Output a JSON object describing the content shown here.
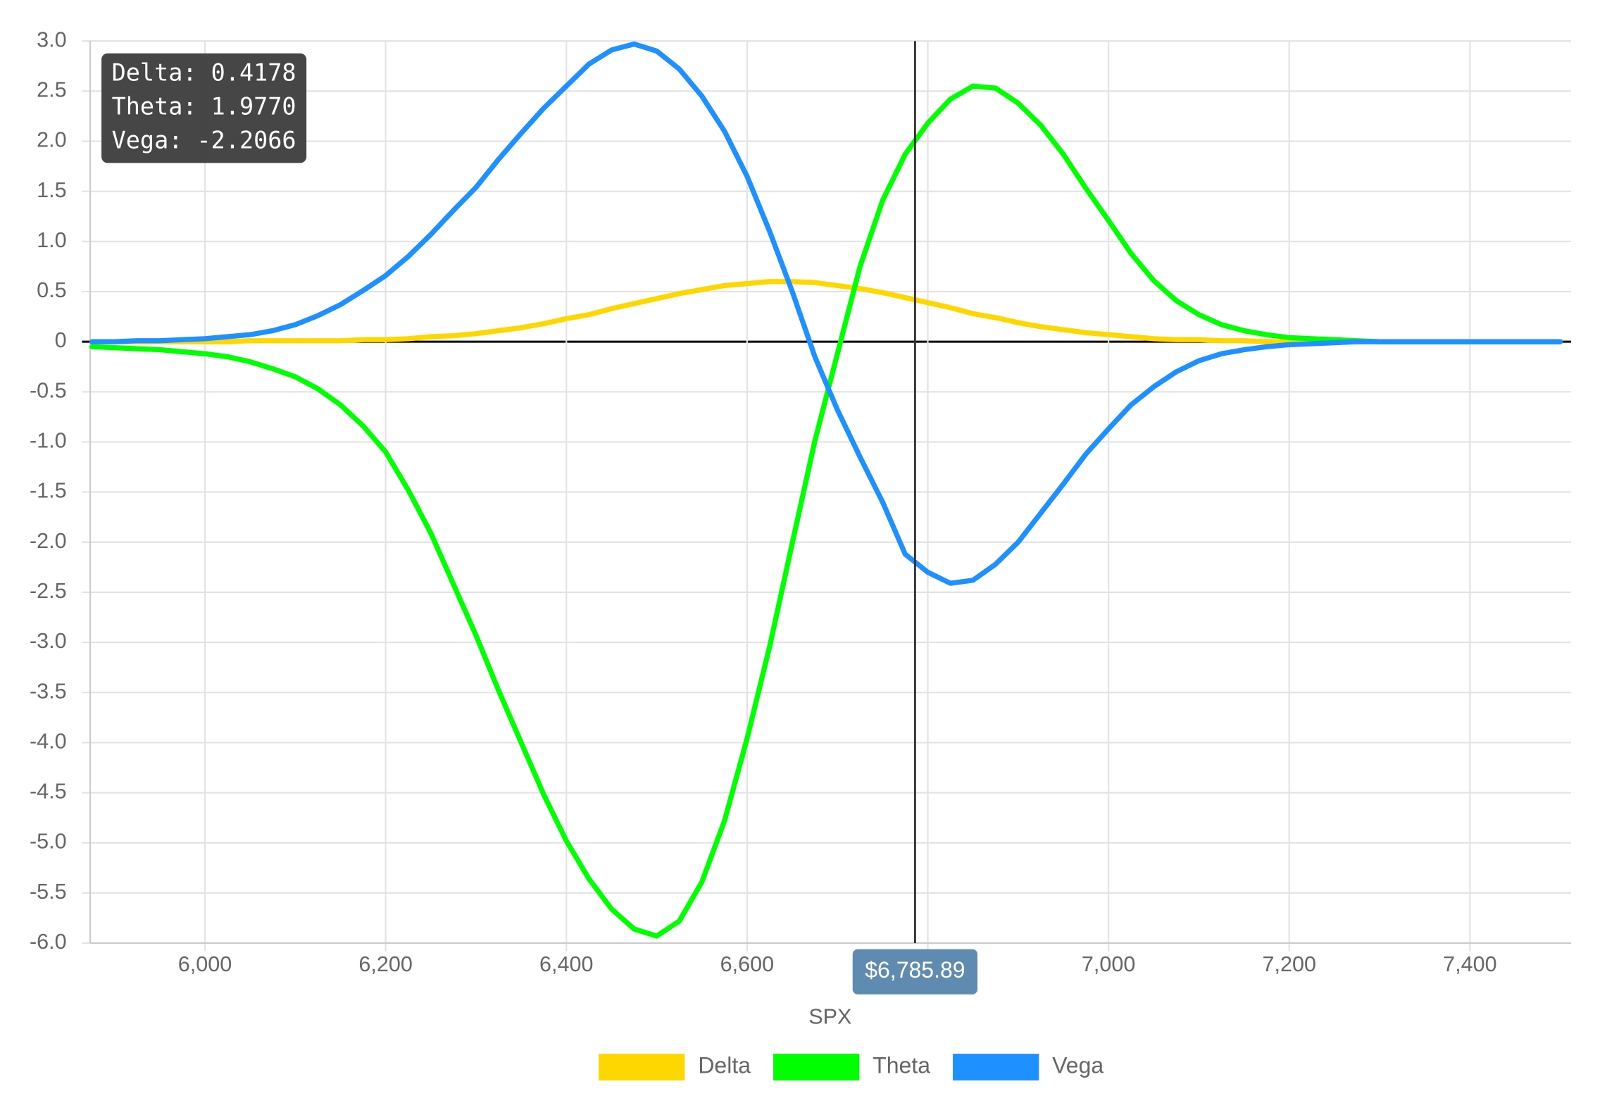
{
  "chart_data": {
    "type": "line",
    "xlabel": "SPX",
    "xlim": [
      5873,
      7512
    ],
    "ylim": [
      -6,
      3
    ],
    "grid": true,
    "legend": "bottom",
    "xticks": [
      {
        "value": 6000,
        "label": "6,000"
      },
      {
        "value": 6200,
        "label": "6,200"
      },
      {
        "value": 6400,
        "label": "6,400"
      },
      {
        "value": 6600,
        "label": "6,600"
      },
      {
        "value": 6800,
        "label": "6,800"
      },
      {
        "value": 7000,
        "label": "7,000"
      },
      {
        "value": 7200,
        "label": "7,200"
      },
      {
        "value": 7400,
        "label": "7,400"
      }
    ],
    "yticks": [
      {
        "value": 3,
        "label": "3.0"
      },
      2.5,
      {
        "value": 2,
        "label": "2.0"
      },
      1.5,
      {
        "value": 1,
        "label": "1.0"
      },
      0.5,
      0,
      -0.5,
      {
        "value": -1,
        "label": "-1.0"
      },
      -1.5,
      {
        "value": -2,
        "label": "-2.0"
      },
      -2.5,
      {
        "value": -3,
        "label": "-3.0"
      },
      -3.5,
      {
        "value": -4,
        "label": "-4.0"
      },
      -4.5,
      {
        "value": -5,
        "label": "-5.0"
      },
      -5.5,
      {
        "value": -6,
        "label": "-6.0"
      }
    ],
    "crosshair": {
      "value": 6785.89,
      "label": "$6,785.89"
    },
    "tooltip": [
      "Delta: 0.4178",
      "Theta: 1.9770",
      "Vega: -2.2066"
    ],
    "x": [
      5875,
      5900,
      5925,
      5950,
      5975,
      6000,
      6025,
      6050,
      6075,
      6100,
      6125,
      6150,
      6175,
      6200,
      6225,
      6250,
      6275,
      6300,
      6325,
      6350,
      6375,
      6400,
      6425,
      6450,
      6475,
      6500,
      6525,
      6550,
      6575,
      6600,
      6625,
      6650,
      6675,
      6700,
      6725,
      6750,
      6775,
      6800,
      6825,
      6850,
      6875,
      6900,
      6925,
      6950,
      6975,
      7000,
      7025,
      7050,
      7075,
      7100,
      7125,
      7150,
      7175,
      7200,
      7225,
      7250,
      7275,
      7300,
      7325,
      7350,
      7375,
      7400,
      7425,
      7450,
      7475,
      7500
    ],
    "series": [
      {
        "name": "Delta",
        "color": "#FFD700",
        "values": [
          0,
          0,
          0,
          0,
          0,
          0,
          0,
          0.01,
          0.01,
          0.01,
          0.01,
          0.01,
          0.02,
          0.02,
          0.03,
          0.05,
          0.06,
          0.08,
          0.11,
          0.14,
          0.18,
          0.23,
          0.27,
          0.33,
          0.38,
          0.43,
          0.48,
          0.52,
          0.56,
          0.58,
          0.6,
          0.6,
          0.59,
          0.56,
          0.53,
          0.49,
          0.44,
          0.39,
          0.34,
          0.28,
          0.24,
          0.19,
          0.15,
          0.12,
          0.09,
          0.07,
          0.05,
          0.03,
          0.02,
          0.02,
          0.01,
          0.01,
          0,
          0,
          0,
          0,
          0,
          0,
          0,
          0,
          0,
          0,
          0,
          0,
          0,
          0
        ]
      },
      {
        "name": "Theta",
        "color": "#00FF00",
        "values": [
          -0.05,
          -0.06,
          -0.07,
          -0.08,
          -0.1,
          -0.12,
          -0.15,
          -0.2,
          -0.27,
          -0.35,
          -0.47,
          -0.63,
          -0.84,
          -1.1,
          -1.48,
          -1.91,
          -2.42,
          -2.93,
          -3.48,
          -4.0,
          -4.52,
          -4.98,
          -5.36,
          -5.66,
          -5.86,
          -5.93,
          -5.78,
          -5.39,
          -4.78,
          -3.96,
          -3.04,
          -2.01,
          -0.99,
          -0.12,
          0.75,
          1.41,
          1.87,
          2.18,
          2.42,
          2.55,
          2.53,
          2.38,
          2.16,
          1.87,
          1.53,
          1.21,
          0.88,
          0.61,
          0.41,
          0.27,
          0.17,
          0.11,
          0.07,
          0.04,
          0.03,
          0.02,
          0.01,
          0,
          0,
          0,
          0,
          0,
          0,
          0,
          0,
          0
        ]
      },
      {
        "name": "Vega",
        "color": "#1E90FF",
        "values": [
          0,
          0,
          0.01,
          0.01,
          0.02,
          0.03,
          0.05,
          0.07,
          0.11,
          0.17,
          0.26,
          0.37,
          0.51,
          0.66,
          0.85,
          1.07,
          1.31,
          1.54,
          1.82,
          2.08,
          2.33,
          2.55,
          2.77,
          2.91,
          2.97,
          2.9,
          2.72,
          2.45,
          2.1,
          1.65,
          1.1,
          0.5,
          -0.15,
          -0.68,
          -1.15,
          -1.6,
          -2.12,
          -2.3,
          -2.41,
          -2.38,
          -2.22,
          -2.0,
          -1.71,
          -1.42,
          -1.12,
          -0.87,
          -0.63,
          -0.45,
          -0.3,
          -0.19,
          -0.12,
          -0.08,
          -0.05,
          -0.03,
          -0.02,
          -0.01,
          0,
          0,
          0,
          0,
          0,
          0,
          0,
          0,
          0,
          0
        ]
      }
    ]
  }
}
